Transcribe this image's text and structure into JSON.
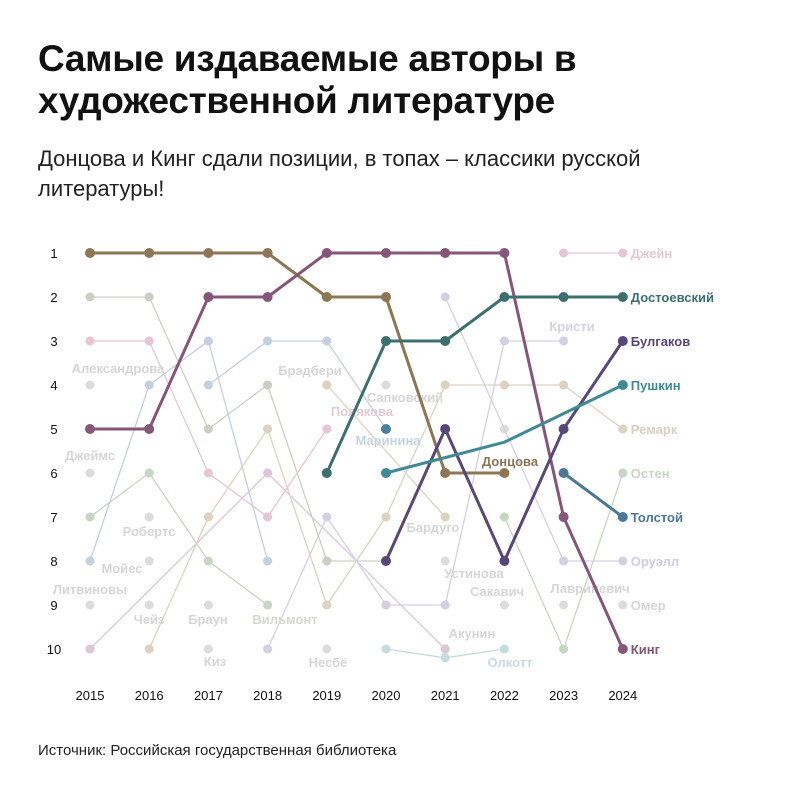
{
  "title": "Самые издаваемые авторы в художественной литературе",
  "subtitle": "Донцова и Кинг сдали позиции, в топах – классики русской литературы!",
  "source": "Источник: Российская государственная библиотека",
  "chart_data": {
    "type": "bump",
    "x": [
      2015,
      2016,
      2017,
      2018,
      2019,
      2020,
      2021,
      2022,
      2023,
      2024
    ],
    "ranks": [
      1,
      2,
      3,
      4,
      5,
      6,
      7,
      8,
      9,
      10
    ],
    "ylim": [
      1,
      10
    ],
    "y_reversed": true,
    "highlight_series": [
      {
        "name": "Донцова",
        "color": "#8c7654",
        "points": [
          [
            2015,
            1
          ],
          [
            2016,
            1
          ],
          [
            2017,
            1
          ],
          [
            2018,
            1
          ],
          [
            2019,
            2
          ],
          [
            2020,
            2
          ],
          [
            2021,
            6
          ],
          [
            2022,
            6
          ]
        ]
      },
      {
        "name": "Кинг",
        "color": "#86567a",
        "points": [
          [
            2015,
            5
          ],
          [
            2016,
            5
          ],
          [
            2017,
            2
          ],
          [
            2018,
            2
          ],
          [
            2019,
            1
          ],
          [
            2020,
            1
          ],
          [
            2021,
            1
          ],
          [
            2022,
            1
          ],
          [
            2023,
            7
          ],
          [
            2024,
            10
          ]
        ]
      },
      {
        "name": "Достоевский",
        "color": "#3d6f6f",
        "points": [
          [
            2019,
            6
          ],
          [
            2020,
            3
          ],
          [
            2021,
            3
          ],
          [
            2022,
            2
          ],
          [
            2023,
            2
          ],
          [
            2024,
            2
          ]
        ]
      },
      {
        "name": "Булгаков",
        "color": "#584878",
        "points": [
          [
            2020,
            8
          ],
          [
            2021,
            5
          ],
          [
            2022,
            8
          ],
          [
            2023,
            5
          ],
          [
            2024,
            3
          ]
        ]
      },
      {
        "name": "Пушкин",
        "color": "#3f8a96",
        "points": [
          [
            2020,
            6
          ],
          [
            2022,
            5.3
          ],
          [
            2024,
            4
          ]
        ]
      },
      {
        "name": "Толстой",
        "color": "#4a7896",
        "points": [
          [
            2023,
            6
          ],
          [
            2024,
            7
          ]
        ]
      },
      {
        "name": "Маринина",
        "color": "#4a7f9e",
        "points": [
          [
            2020,
            5
          ]
        ]
      }
    ],
    "background_series": [
      {
        "color": "#cfcdc3",
        "points": [
          [
            2015,
            2
          ],
          [
            2016,
            2
          ],
          [
            2017,
            5
          ],
          [
            2018,
            4
          ],
          [
            2019,
            8
          ],
          [
            2020,
            8
          ]
        ]
      },
      {
        "color": "#e5c6d2",
        "points": [
          [
            2015,
            3
          ],
          [
            2016,
            3
          ],
          [
            2017,
            6
          ],
          [
            2018,
            7
          ],
          [
            2019,
            5
          ]
        ]
      },
      {
        "color": "#c3d0df",
        "points": [
          [
            2015,
            8
          ],
          [
            2016,
            4
          ],
          [
            2017,
            3
          ],
          [
            2018,
            8
          ]
        ]
      },
      {
        "color": "#c3d0df",
        "points": [
          [
            2017,
            4
          ],
          [
            2018,
            3
          ],
          [
            2019,
            3
          ],
          [
            2020,
            5
          ]
        ]
      },
      {
        "color": "#c6d6c0",
        "points": [
          [
            2015,
            7
          ],
          [
            2016,
            6
          ],
          [
            2017,
            8
          ],
          [
            2018,
            9
          ]
        ]
      },
      {
        "color": "#dcc7d2",
        "points": [
          [
            2015,
            10
          ],
          [
            2018,
            6
          ],
          [
            2021,
            10
          ]
        ]
      },
      {
        "color": "#ddd2bf",
        "points": [
          [
            2016,
            10
          ],
          [
            2017,
            7
          ],
          [
            2018,
            5
          ],
          [
            2019,
            9
          ],
          [
            2020,
            7
          ],
          [
            2021,
            4
          ],
          [
            2022,
            4
          ],
          [
            2023,
            4
          ],
          [
            2024,
            5
          ]
        ]
      },
      {
        "color": "#d3d0e3",
        "points": [
          [
            2018,
            10
          ],
          [
            2019,
            7
          ],
          [
            2020,
            9
          ],
          [
            2021,
            9
          ],
          [
            2022,
            3
          ],
          [
            2023,
            3
          ]
        ]
      },
      {
        "color": "#d3d0e3",
        "points": [
          [
            2021,
            2
          ],
          [
            2023,
            8
          ],
          [
            2024,
            8
          ]
        ]
      },
      {
        "color": "#ddd2bf",
        "points": [
          [
            2019,
            4
          ],
          [
            2021,
            7
          ]
        ]
      },
      {
        "color": "#c6d6c0",
        "points": [
          [
            2022,
            7
          ],
          [
            2023,
            10
          ],
          [
            2024,
            6
          ]
        ]
      },
      {
        "color": "#e5c6d2",
        "points": [
          [
            2023,
            1
          ],
          [
            2024,
            1
          ]
        ]
      },
      {
        "color": "#c3dcdc",
        "points": [
          [
            2020,
            10
          ],
          [
            2021,
            10.2
          ],
          [
            2022,
            10
          ]
        ]
      }
    ],
    "end_labels": [
      {
        "text": "Джейн",
        "rank": 1,
        "color": "#e3c9d2"
      },
      {
        "text": "Достоевский",
        "rank": 2,
        "color": "#3d6f6f"
      },
      {
        "text": "Булгаков",
        "rank": 3,
        "color": "#584878"
      },
      {
        "text": "Пушкин",
        "rank": 4,
        "color": "#3f8a96"
      },
      {
        "text": "Ремарк",
        "rank": 5,
        "color": "#d9cfbe"
      },
      {
        "text": "Остен",
        "rank": 6,
        "color": "#c9d6c4"
      },
      {
        "text": "Толстой",
        "rank": 7,
        "color": "#4a7896"
      },
      {
        "text": "Оруэлл",
        "rank": 8,
        "color": "#cfcde0"
      },
      {
        "text": "Омер",
        "rank": 9,
        "color": "#d6d6d6"
      },
      {
        "text": "Кинг",
        "rank": 10,
        "color": "#86567a"
      }
    ],
    "point_labels": [
      {
        "text": "Александрова",
        "color": "#d6d6d6"
      },
      {
        "text": "Джеймс",
        "color": "#d6d6d6"
      },
      {
        "text": "Робертс",
        "color": "#d6d6d6"
      },
      {
        "text": "Мойес",
        "color": "#d6d6d6"
      },
      {
        "text": "Литвиновы",
        "color": "#d6d6d6"
      },
      {
        "text": "Чейз",
        "color": "#d6d6d6"
      },
      {
        "text": "Браун",
        "color": "#d6d6d6"
      },
      {
        "text": "Киз",
        "color": "#d6d6d6"
      },
      {
        "text": "Вильмонт",
        "color": "#d3d9cf"
      },
      {
        "text": "Брэдбери",
        "color": "#d6d6d6"
      },
      {
        "text": "Полякова",
        "color": "#e5c9d3"
      },
      {
        "text": "Маринина",
        "color": "#c4d5e2"
      },
      {
        "text": "Сапковский",
        "color": "#d6d6d6"
      },
      {
        "text": "Несбё",
        "color": "#d6d6d6"
      },
      {
        "text": "Бардуго",
        "color": "#d6d6d6"
      },
      {
        "text": "Устинова",
        "color": "#d6d6d6"
      },
      {
        "text": "Сакавич",
        "color": "#d6d6d6"
      },
      {
        "text": "Лавриневич",
        "color": "#d6d6d6"
      },
      {
        "text": "Акунин",
        "color": "#d6d6d6"
      },
      {
        "text": "Олкотт",
        "color": "#c6dcdc"
      },
      {
        "text": "Кристи",
        "color": "#d3d3e0"
      },
      {
        "text": "Донцова",
        "color": "#8c7654"
      }
    ]
  }
}
